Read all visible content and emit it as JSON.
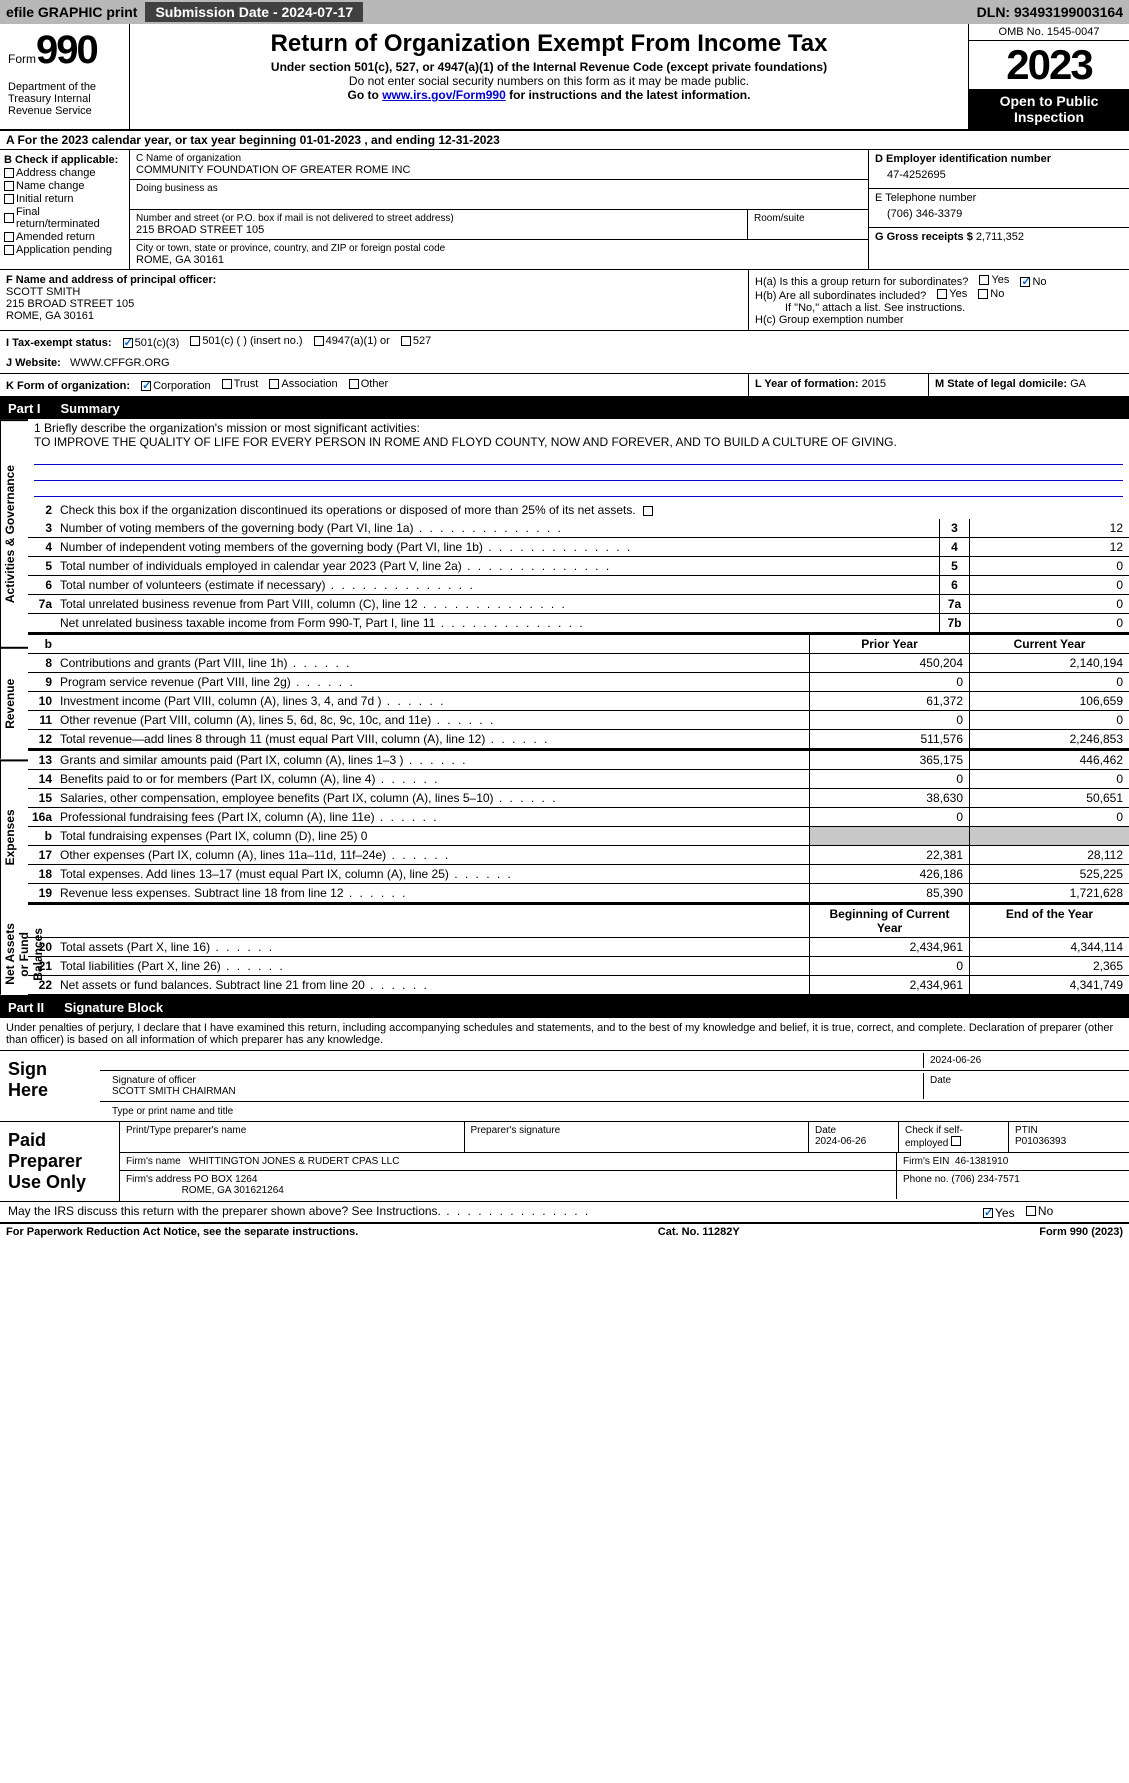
{
  "topbar": {
    "efile": "efile GRAPHIC print",
    "submission_label": "Submission Date - 2024-07-17",
    "dln": "DLN: 93493199003164"
  },
  "header": {
    "form_word": "Form",
    "form_num": "990",
    "dept": "Department of the Treasury Internal Revenue Service",
    "title": "Return of Organization Exempt From Income Tax",
    "sub": "Under section 501(c), 527, or 4947(a)(1) of the Internal Revenue Code (except private foundations)",
    "note": "Do not enter social security numbers on this form as it may be made public.",
    "goto_pre": "Go to ",
    "goto_link": "www.irs.gov/Form990",
    "goto_post": " for instructions and the latest information.",
    "omb": "OMB No. 1545-0047",
    "year": "2023",
    "open": "Open to Public Inspection"
  },
  "section_a": "A For the 2023 calendar year, or tax year beginning 01-01-2023   , and ending 12-31-2023",
  "col_b": {
    "hdr": "B Check if applicable:",
    "items": [
      "Address change",
      "Name change",
      "Initial return",
      "Final return/terminated",
      "Amended return",
      "Application pending"
    ]
  },
  "col_c": {
    "name_label": "C Name of organization",
    "name": "COMMUNITY FOUNDATION OF GREATER ROME INC",
    "dba_label": "Doing business as",
    "street_label": "Number and street (or P.O. box if mail is not delivered to street address)",
    "street": "215 BROAD STREET 105",
    "room_label": "Room/suite",
    "city_label": "City or town, state or province, country, and ZIP or foreign postal code",
    "city": "ROME, GA  30161"
  },
  "col_d": {
    "d_label": "D Employer identification number",
    "d_val": "47-4252695",
    "e_label": "E Telephone number",
    "e_val": "(706) 346-3379",
    "g_label": "G Gross receipts $",
    "g_val": "2,711,352"
  },
  "f": {
    "label": "F  Name and address of principal officer:",
    "name": "SCOTT SMITH",
    "street": "215 BROAD STREET 105",
    "city": "ROME, GA  30161"
  },
  "h": {
    "a": "H(a)  Is this a group return for subordinates?",
    "b": "H(b)  Are all subordinates included?",
    "b_note": "If \"No,\" attach a list. See instructions.",
    "c": "H(c)  Group exemption number",
    "yes": "Yes",
    "no": "No"
  },
  "i": {
    "label": "I   Tax-exempt status:",
    "o1": "501(c)(3)",
    "o2": "501(c) (  ) (insert no.)",
    "o3": "4947(a)(1) or",
    "o4": "527"
  },
  "j": {
    "label": "J   Website:",
    "val": "WWW.CFFGR.ORG"
  },
  "k": {
    "label": "K Form of organization:",
    "o1": "Corporation",
    "o2": "Trust",
    "o3": "Association",
    "o4": "Other"
  },
  "l": {
    "label": "L Year of formation:",
    "val": "2015"
  },
  "m": {
    "label": "M State of legal domicile:",
    "val": "GA"
  },
  "part1": {
    "num": "Part I",
    "title": "Summary"
  },
  "mission": {
    "label": "1   Briefly describe the organization's mission or most significant activities:",
    "text": "TO IMPROVE THE QUALITY OF LIFE FOR EVERY PERSON IN ROME AND FLOYD COUNTY, NOW AND FOREVER, AND TO BUILD A CULTURE OF GIVING."
  },
  "line2": "Check this box          if the organization discontinued its operations or disposed of more than 25% of its net assets.",
  "vtabs": {
    "ag": "Activities & Governance",
    "rev": "Revenue",
    "exp": "Expenses",
    "net": "Net Assets or Fund Balances"
  },
  "lines_single": [
    {
      "n": "3",
      "t": "Number of voting members of the governing body (Part VI, line 1a)",
      "box": "3",
      "v": "12"
    },
    {
      "n": "4",
      "t": "Number of independent voting members of the governing body (Part VI, line 1b)",
      "box": "4",
      "v": "12"
    },
    {
      "n": "5",
      "t": "Total number of individuals employed in calendar year 2023 (Part V, line 2a)",
      "box": "5",
      "v": "0"
    },
    {
      "n": "6",
      "t": "Total number of volunteers (estimate if necessary)",
      "box": "6",
      "v": "0"
    },
    {
      "n": "7a",
      "t": "Total unrelated business revenue from Part VIII, column (C), line 12",
      "box": "7a",
      "v": "0"
    },
    {
      "n": "",
      "t": "Net unrelated business taxable income from Form 990-T, Part I, line 11",
      "box": "7b",
      "v": "0"
    }
  ],
  "col_headers": {
    "b": "b",
    "prior": "Prior Year",
    "current": "Current Year"
  },
  "revenue": [
    {
      "n": "8",
      "t": "Contributions and grants (Part VIII, line 1h)",
      "p": "450,204",
      "c": "2,140,194"
    },
    {
      "n": "9",
      "t": "Program service revenue (Part VIII, line 2g)",
      "p": "0",
      "c": "0"
    },
    {
      "n": "10",
      "t": "Investment income (Part VIII, column (A), lines 3, 4, and 7d )",
      "p": "61,372",
      "c": "106,659"
    },
    {
      "n": "11",
      "t": "Other revenue (Part VIII, column (A), lines 5, 6d, 8c, 9c, 10c, and 11e)",
      "p": "0",
      "c": "0"
    },
    {
      "n": "12",
      "t": "Total revenue—add lines 8 through 11 (must equal Part VIII, column (A), line 12)",
      "p": "511,576",
      "c": "2,246,853"
    }
  ],
  "expenses": [
    {
      "n": "13",
      "t": "Grants and similar amounts paid (Part IX, column (A), lines 1–3 )",
      "p": "365,175",
      "c": "446,462"
    },
    {
      "n": "14",
      "t": "Benefits paid to or for members (Part IX, column (A), line 4)",
      "p": "0",
      "c": "0"
    },
    {
      "n": "15",
      "t": "Salaries, other compensation, employee benefits (Part IX, column (A), lines 5–10)",
      "p": "38,630",
      "c": "50,651"
    },
    {
      "n": "16a",
      "t": "Professional fundraising fees (Part IX, column (A), line 11e)",
      "p": "0",
      "c": "0"
    },
    {
      "n": "b",
      "t": "Total fundraising expenses (Part IX, column (D), line 25) 0",
      "p": "",
      "c": "",
      "grey": true
    },
    {
      "n": "17",
      "t": "Other expenses (Part IX, column (A), lines 11a–11d, 11f–24e)",
      "p": "22,381",
      "c": "28,112"
    },
    {
      "n": "18",
      "t": "Total expenses. Add lines 13–17 (must equal Part IX, column (A), line 25)",
      "p": "426,186",
      "c": "525,225"
    },
    {
      "n": "19",
      "t": "Revenue less expenses. Subtract line 18 from line 12",
      "p": "85,390",
      "c": "1,721,628"
    }
  ],
  "net_headers": {
    "begin": "Beginning of Current Year",
    "end": "End of the Year"
  },
  "netassets": [
    {
      "n": "20",
      "t": "Total assets (Part X, line 16)",
      "p": "2,434,961",
      "c": "4,344,114"
    },
    {
      "n": "21",
      "t": "Total liabilities (Part X, line 26)",
      "p": "0",
      "c": "2,365"
    },
    {
      "n": "22",
      "t": "Net assets or fund balances. Subtract line 21 from line 20",
      "p": "2,434,961",
      "c": "4,341,749"
    }
  ],
  "part2": {
    "num": "Part II",
    "title": "Signature Block"
  },
  "penalties": "Under penalties of perjury, I declare that I have examined this return, including accompanying schedules and statements, and to the best of my knowledge and belief, it is true, correct, and complete. Declaration of preparer (other than officer) is based on all information of which preparer has any knowledge.",
  "sign": {
    "label": "Sign Here",
    "date": "2024-06-26",
    "sig_label": "Signature of officer",
    "name": "SCOTT SMITH  CHAIRMAN",
    "name_label": "Type or print name and title",
    "date_label": "Date"
  },
  "paid": {
    "label": "Paid Preparer Use Only",
    "h1": "Print/Type preparer's name",
    "h2": "Preparer's signature",
    "h3": "Date",
    "h3v": "2024-06-26",
    "h4": "Check         if self-employed",
    "h5": "PTIN",
    "h5v": "P01036393",
    "firm_label": "Firm's name",
    "firm": "WHITTINGTON JONES & RUDERT CPAS LLC",
    "ein_label": "Firm's EIN",
    "ein": "46-1381910",
    "addr_label": "Firm's address",
    "addr1": "PO BOX 1264",
    "addr2": "ROME, GA  301621264",
    "phone_label": "Phone no.",
    "phone": "(706) 234-7571"
  },
  "discuss": "May the IRS discuss this return with the preparer shown above? See Instructions.",
  "footer": {
    "left": "For Paperwork Reduction Act Notice, see the separate instructions.",
    "mid": "Cat. No. 11282Y",
    "right": "Form 990 (2023)"
  }
}
